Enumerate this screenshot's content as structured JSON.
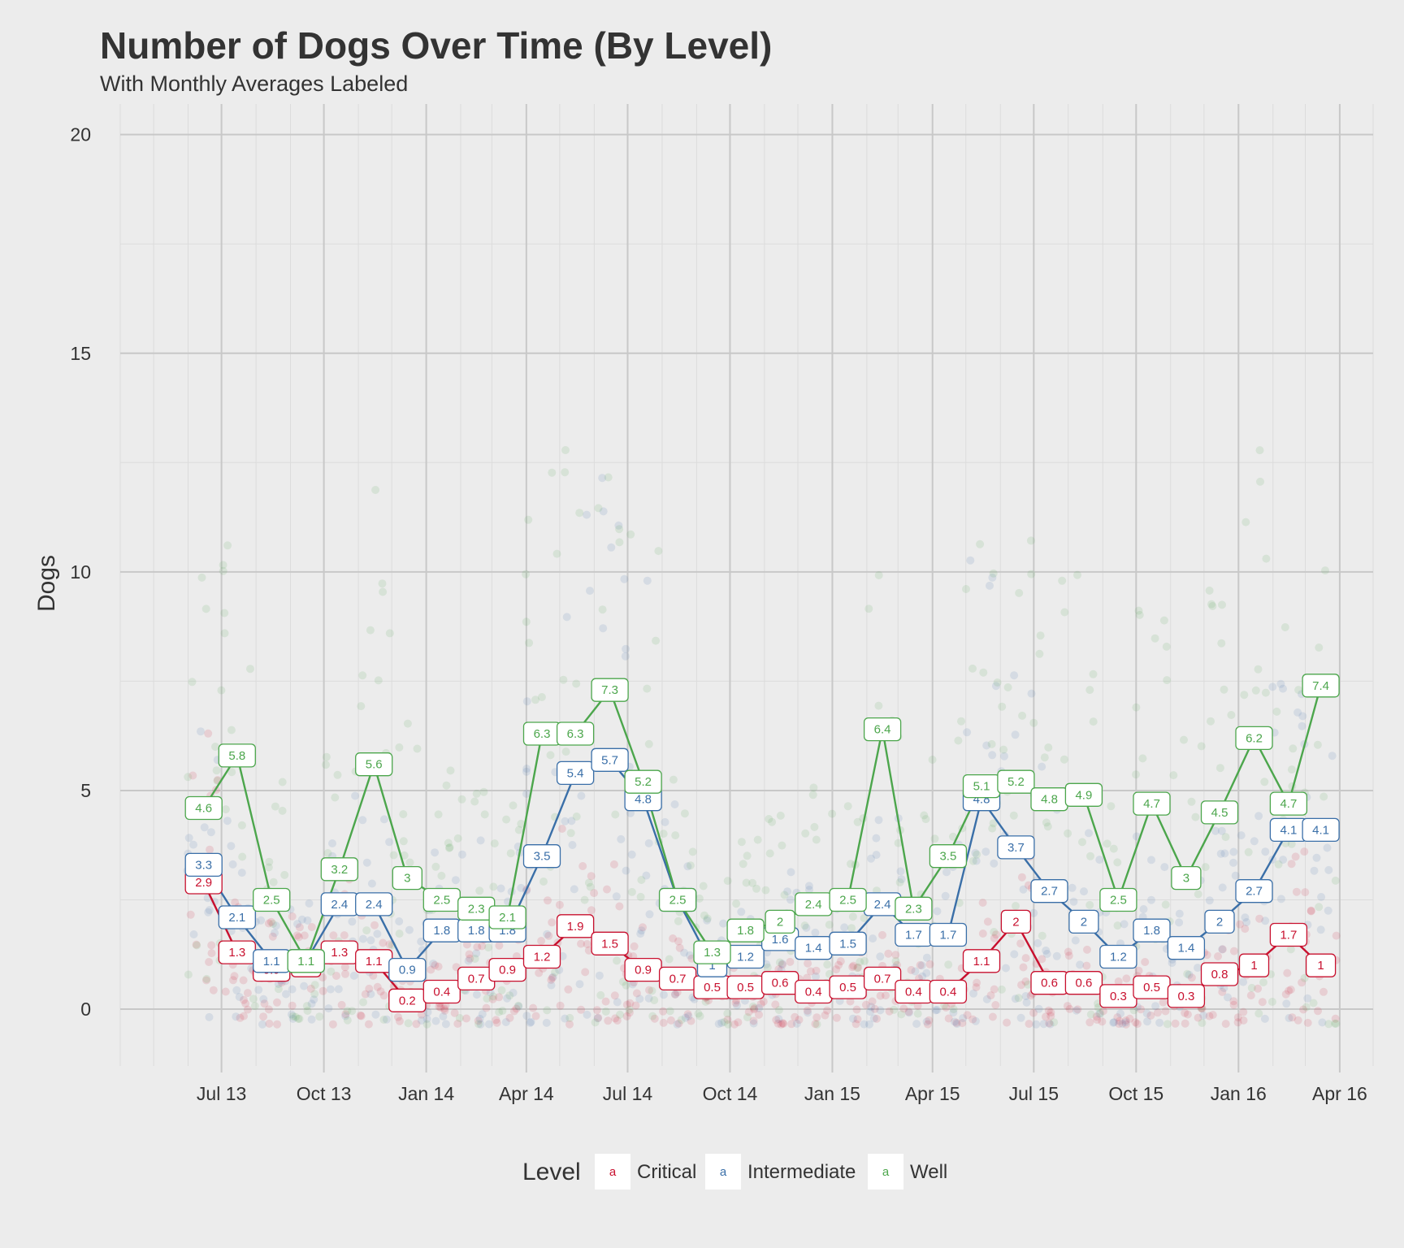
{
  "chart_data": {
    "type": "line",
    "title": "Number of Dogs Over Time (By Level)",
    "subtitle": "With Monthly Averages Labeled",
    "xlabel": "",
    "ylabel": "Dogs",
    "x_tick_labels": [
      "Jul 13",
      "Oct 13",
      "Jan 14",
      "Apr 14",
      "Jul 14",
      "Oct 14",
      "Jan 15",
      "Apr 15",
      "Jul 15",
      "Oct 15",
      "Jan 16",
      "Apr 16"
    ],
    "x_tick_dates": [
      "2013-07-01",
      "2013-10-01",
      "2014-01-01",
      "2014-04-01",
      "2014-07-01",
      "2014-10-01",
      "2015-01-01",
      "2015-04-01",
      "2015-07-01",
      "2015-10-01",
      "2016-01-01",
      "2016-04-01"
    ],
    "xlim": [
      "2013-04-01",
      "2016-05-01"
    ],
    "ylim": [
      -1.3,
      20.7
    ],
    "y_ticks": [
      0,
      5,
      10,
      15,
      20
    ],
    "grid": true,
    "legend": {
      "title": "Level",
      "position": "bottom",
      "key_glyph": "a"
    },
    "months": [
      "2013-06",
      "2013-07",
      "2013-08",
      "2013-09",
      "2013-10",
      "2013-11",
      "2013-12",
      "2014-01",
      "2014-02",
      "2014-03",
      "2014-04",
      "2014-05",
      "2014-06",
      "2014-07",
      "2014-08",
      "2014-09",
      "2014-10",
      "2014-11",
      "2014-12",
      "2015-01",
      "2015-02",
      "2015-03",
      "2015-04",
      "2015-05",
      "2015-06",
      "2015-07",
      "2015-08",
      "2015-09",
      "2015-10",
      "2015-11",
      "2015-12",
      "2016-01",
      "2016-02",
      "2016-03"
    ],
    "series": [
      {
        "name": "Critical",
        "color": "#c8102e",
        "labels": [
          "2.9",
          "1.3",
          "0.9",
          "1",
          "1.3",
          "1.1",
          "0.2",
          "0.4",
          "0.7",
          "0.9",
          "1.2",
          "1.9",
          "1.5",
          "0.9",
          "0.7",
          "0.5",
          "0.5",
          "0.6",
          "0.4",
          "0.5",
          "0.7",
          "0.4",
          "0.4",
          "1.1",
          "2",
          "0.6",
          "0.6",
          "0.3",
          "0.5",
          "0.3",
          "0.8",
          "1",
          "1.7",
          "1"
        ],
        "values": [
          2.9,
          1.3,
          0.9,
          1.0,
          1.3,
          1.1,
          0.2,
          0.4,
          0.7,
          0.9,
          1.2,
          1.9,
          1.5,
          0.9,
          0.7,
          0.5,
          0.5,
          0.6,
          0.4,
          0.5,
          0.7,
          0.4,
          0.4,
          1.1,
          2.0,
          0.6,
          0.6,
          0.3,
          0.5,
          0.3,
          0.8,
          1.0,
          1.7,
          1.0
        ]
      },
      {
        "name": "Intermediate",
        "color": "#3a6fa8",
        "labels": [
          "3.3",
          "2.1",
          "1.1",
          "1.1",
          "2.4",
          "2.4",
          "0.9",
          "1.8",
          "1.8",
          "1.8",
          "3.5",
          "5.4",
          "5.7",
          "4.8",
          "2.5",
          "1",
          "1.2",
          "1.6",
          "1.4",
          "1.5",
          "2.4",
          "1.7",
          "1.7",
          "4.8",
          "3.7",
          "2.7",
          "2",
          "1.2",
          "1.8",
          "1.4",
          "2",
          "2.7",
          "4.1",
          "4.1"
        ],
        "values": [
          3.3,
          2.1,
          1.1,
          1.1,
          2.4,
          2.4,
          0.9,
          1.8,
          1.8,
          1.8,
          3.5,
          5.4,
          5.7,
          4.8,
          2.5,
          1.0,
          1.2,
          1.6,
          1.4,
          1.5,
          2.4,
          1.7,
          1.7,
          4.8,
          3.7,
          2.7,
          2.0,
          1.2,
          1.8,
          1.4,
          2.0,
          2.7,
          4.1,
          4.1
        ]
      },
      {
        "name": "Well",
        "color": "#4ca64c",
        "labels": [
          "4.6",
          "5.8",
          "2.5",
          "1.1",
          "3.2",
          "5.6",
          "3",
          "2.5",
          "2.3",
          "2.1",
          "6.3",
          "6.3",
          "7.3",
          "5.2",
          "2.5",
          "1.3",
          "1.8",
          "2",
          "2.4",
          "2.5",
          "6.4",
          "2.3",
          "3.5",
          "5.1",
          "5.2",
          "4.8",
          "4.9",
          "2.5",
          "4.7",
          "3",
          "4.5",
          "6.2",
          "4.7",
          "7.4"
        ],
        "values": [
          4.6,
          5.8,
          2.5,
          1.1,
          3.2,
          5.6,
          3.0,
          2.5,
          2.3,
          2.1,
          6.3,
          6.3,
          7.3,
          5.2,
          2.5,
          1.3,
          1.8,
          2.0,
          2.4,
          2.5,
          6.4,
          2.3,
          3.5,
          5.1,
          5.2,
          4.8,
          4.9,
          2.5,
          4.7,
          3.0,
          4.5,
          6.2,
          4.7,
          7.4
        ]
      }
    ],
    "scatter_note": "Daily observations shown as faint jittered points around monthly averages"
  }
}
